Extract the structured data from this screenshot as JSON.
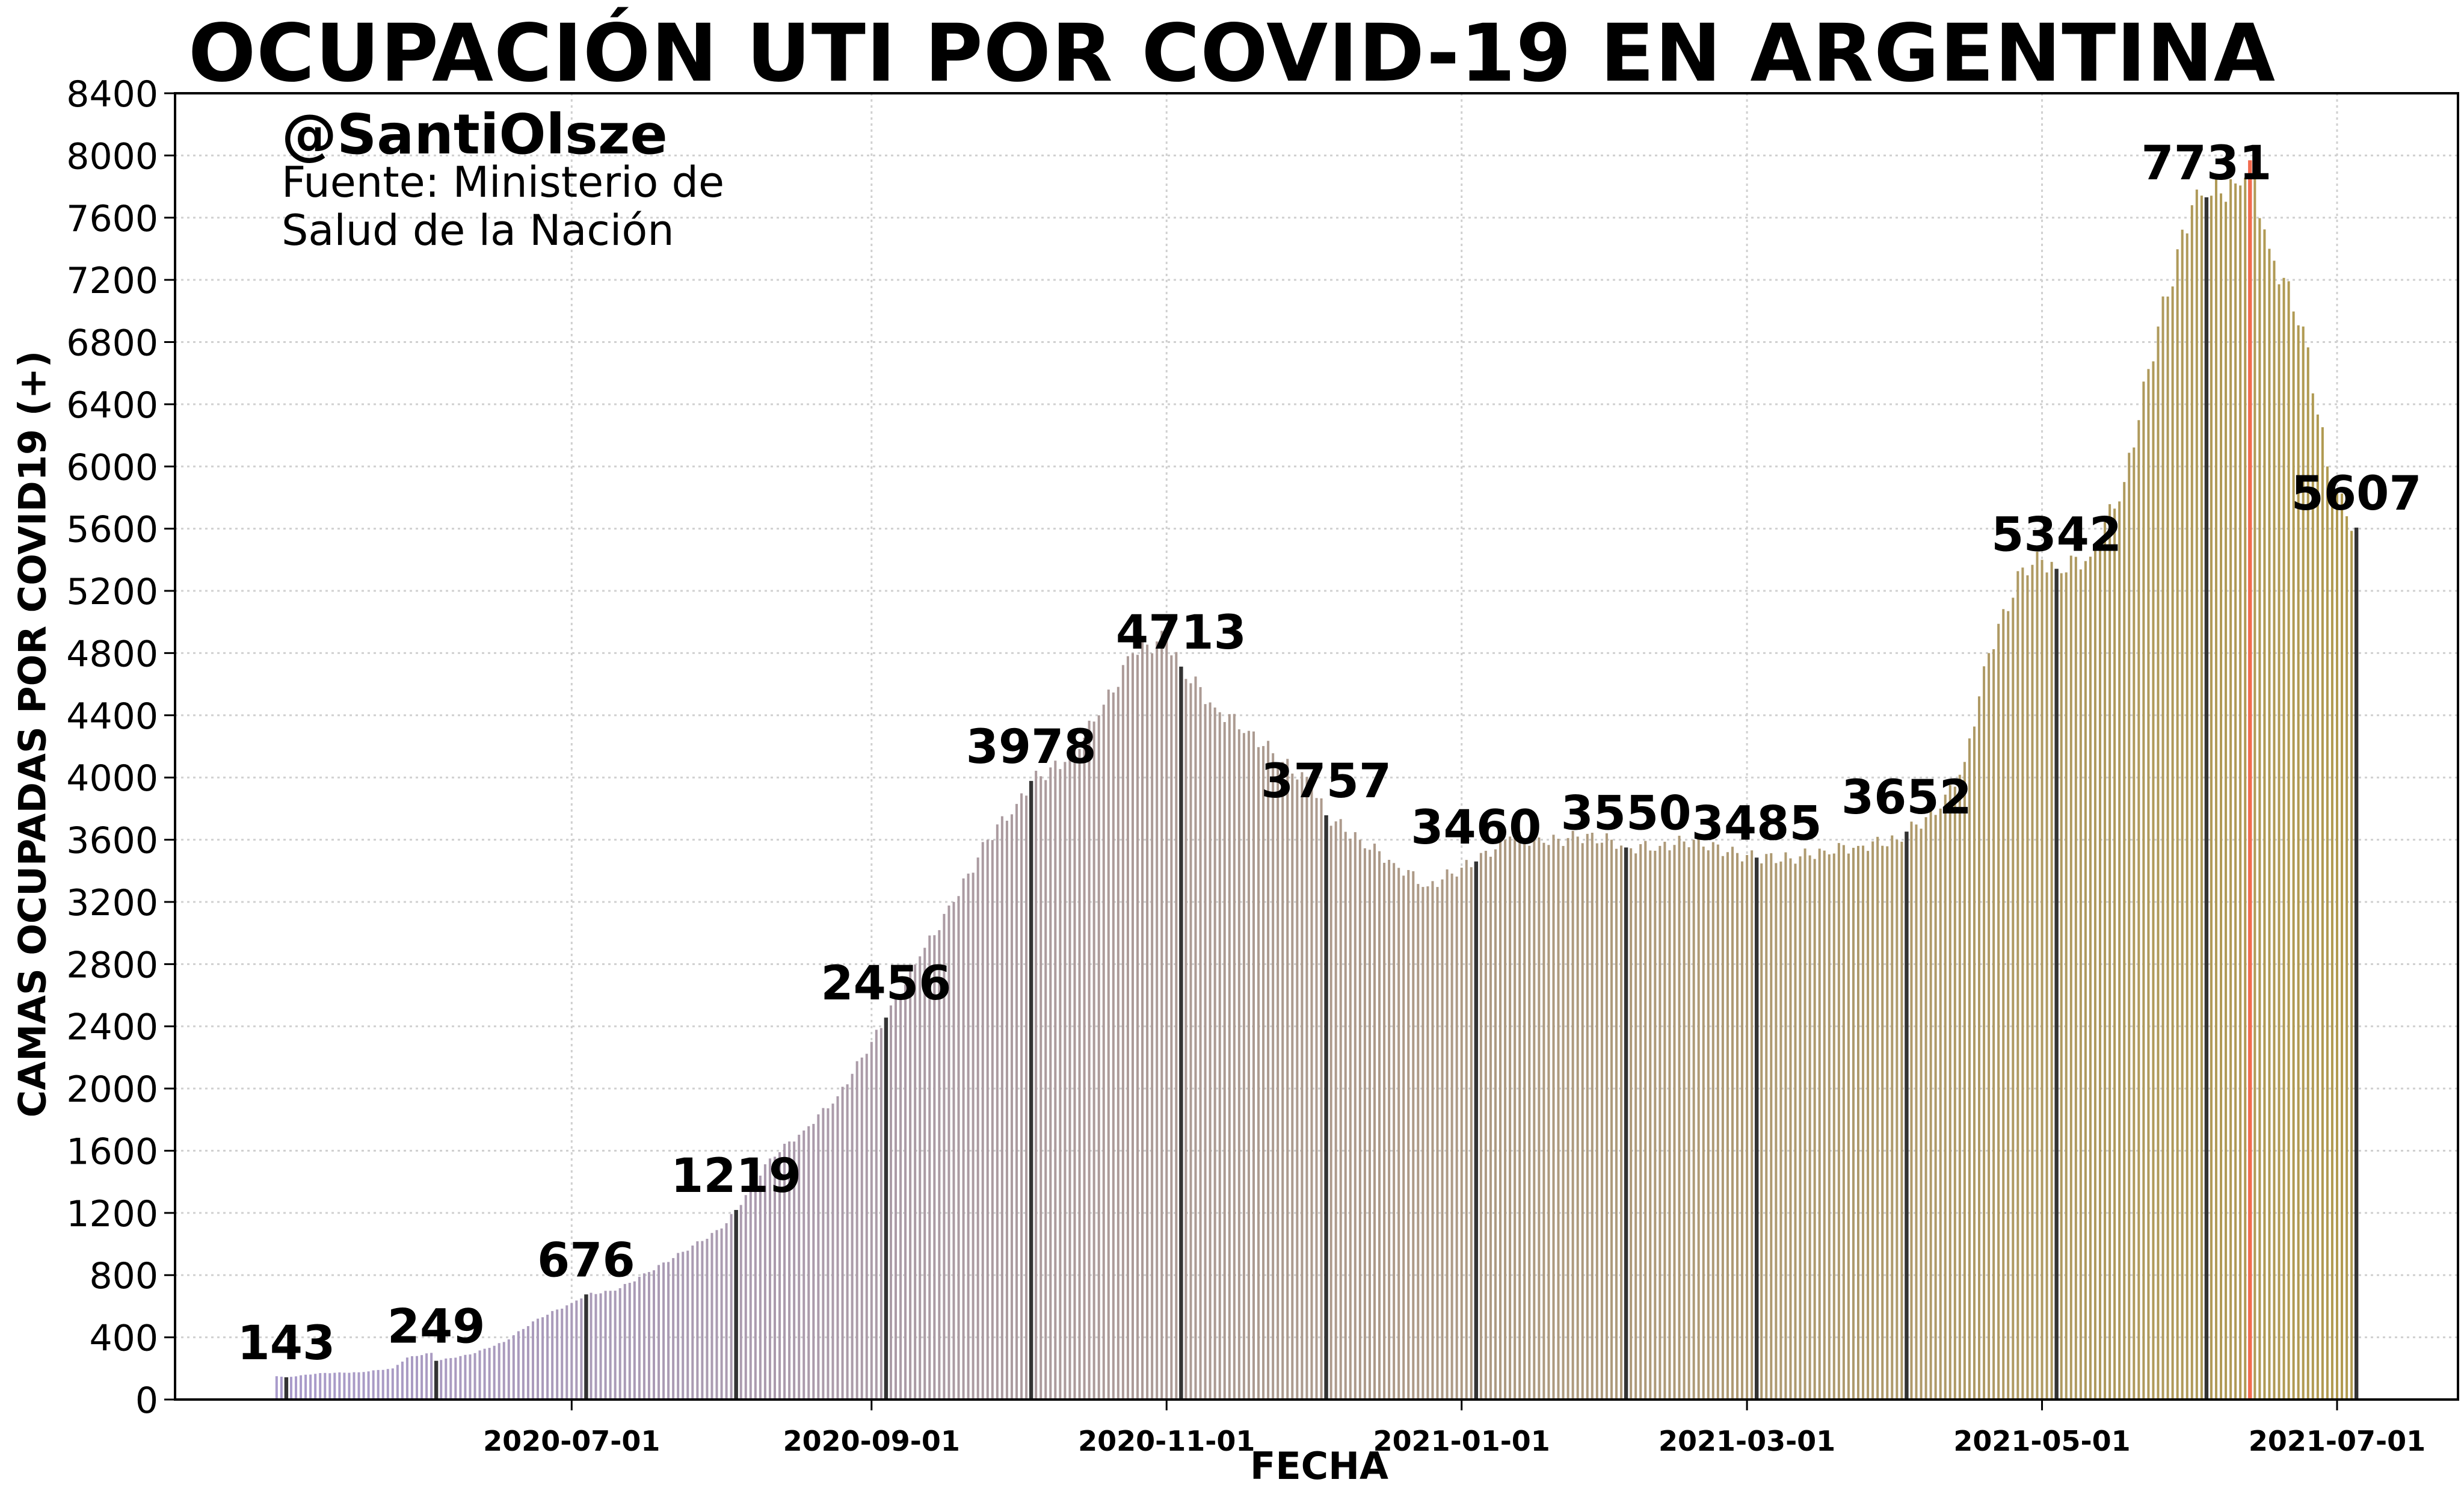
{
  "chart_data": {
    "type": "bar",
    "title": "OCUPACIÓN UTI POR COVID-19 EN ARGENTINA",
    "credit_handle": "@SantiOlsze",
    "credit_source_line1": "Fuente: Ministerio de",
    "credit_source_line2": "Salud de la Nación",
    "xlabel": "FECHA",
    "ylabel": "CAMAS OCUPADAS POR COVID19 (+)",
    "ylim": [
      0,
      8400
    ],
    "yticks": [
      0,
      400,
      800,
      1200,
      1600,
      2000,
      2400,
      2800,
      3200,
      3600,
      4000,
      4400,
      4800,
      5200,
      5600,
      6000,
      6400,
      6800,
      7200,
      7600,
      8000,
      8400
    ],
    "xlim": [
      "2020-04-10",
      "2021-07-26"
    ],
    "xticks": [
      "2020-07-01",
      "2020-09-01",
      "2020-11-01",
      "2021-01-01",
      "2021-03-01",
      "2021-05-01",
      "2021-07-01"
    ],
    "grid": true,
    "color_start": "#a99bcb",
    "color_end": "#b09a4f",
    "highlight_color": "#333333",
    "peak_color": "#f26b4f",
    "series_keypoints": [
      {
        "date": "2020-05-01",
        "value": 150
      },
      {
        "date": "2020-05-03",
        "value": 143
      },
      {
        "date": "2020-05-10",
        "value": 170
      },
      {
        "date": "2020-05-18",
        "value": 175
      },
      {
        "date": "2020-05-25",
        "value": 200
      },
      {
        "date": "2020-05-28",
        "value": 270
      },
      {
        "date": "2020-06-02",
        "value": 300
      },
      {
        "date": "2020-06-03",
        "value": 249
      },
      {
        "date": "2020-06-10",
        "value": 290
      },
      {
        "date": "2020-06-17",
        "value": 370
      },
      {
        "date": "2020-06-24",
        "value": 520
      },
      {
        "date": "2020-07-01",
        "value": 620
      },
      {
        "date": "2020-07-04",
        "value": 676
      },
      {
        "date": "2020-07-10",
        "value": 700
      },
      {
        "date": "2020-07-17",
        "value": 820
      },
      {
        "date": "2020-07-24",
        "value": 950
      },
      {
        "date": "2020-08-01",
        "value": 1100
      },
      {
        "date": "2020-08-04",
        "value": 1219
      },
      {
        "date": "2020-08-11",
        "value": 1550
      },
      {
        "date": "2020-08-18",
        "value": 1730
      },
      {
        "date": "2020-08-25",
        "value": 1950
      },
      {
        "date": "2020-09-01",
        "value": 2300
      },
      {
        "date": "2020-09-04",
        "value": 2456
      },
      {
        "date": "2020-09-11",
        "value": 2850
      },
      {
        "date": "2020-09-18",
        "value": 3200
      },
      {
        "date": "2020-09-25",
        "value": 3600
      },
      {
        "date": "2020-10-01",
        "value": 3830
      },
      {
        "date": "2020-10-04",
        "value": 3978
      },
      {
        "date": "2020-10-11",
        "value": 4100
      },
      {
        "date": "2020-10-18",
        "value": 4400
      },
      {
        "date": "2020-10-25",
        "value": 4800
      },
      {
        "date": "2020-11-01",
        "value": 4900
      },
      {
        "date": "2020-11-04",
        "value": 4713
      },
      {
        "date": "2020-11-11",
        "value": 4450
      },
      {
        "date": "2020-11-18",
        "value": 4300
      },
      {
        "date": "2020-11-25",
        "value": 4100
      },
      {
        "date": "2020-12-01",
        "value": 3950
      },
      {
        "date": "2020-12-04",
        "value": 3757
      },
      {
        "date": "2020-12-11",
        "value": 3600
      },
      {
        "date": "2020-12-18",
        "value": 3450
      },
      {
        "date": "2020-12-25",
        "value": 3300
      },
      {
        "date": "2021-01-01",
        "value": 3420
      },
      {
        "date": "2021-01-04",
        "value": 3460
      },
      {
        "date": "2021-01-11",
        "value": 3620
      },
      {
        "date": "2021-01-18",
        "value": 3580
      },
      {
        "date": "2021-01-25",
        "value": 3620
      },
      {
        "date": "2021-02-01",
        "value": 3600
      },
      {
        "date": "2021-02-04",
        "value": 3550
      },
      {
        "date": "2021-02-11",
        "value": 3560
      },
      {
        "date": "2021-02-18",
        "value": 3600
      },
      {
        "date": "2021-02-25",
        "value": 3520
      },
      {
        "date": "2021-03-03",
        "value": 3485
      },
      {
        "date": "2021-03-10",
        "value": 3480
      },
      {
        "date": "2021-03-17",
        "value": 3530
      },
      {
        "date": "2021-03-24",
        "value": 3560
      },
      {
        "date": "2021-04-01",
        "value": 3600
      },
      {
        "date": "2021-04-03",
        "value": 3652
      },
      {
        "date": "2021-04-10",
        "value": 3800
      },
      {
        "date": "2021-04-15",
        "value": 4100
      },
      {
        "date": "2021-04-20",
        "value": 4800
      },
      {
        "date": "2021-04-27",
        "value": 5350
      },
      {
        "date": "2021-05-01",
        "value": 5400
      },
      {
        "date": "2021-05-04",
        "value": 5342
      },
      {
        "date": "2021-05-11",
        "value": 5420
      },
      {
        "date": "2021-05-18",
        "value": 5900
      },
      {
        "date": "2021-05-25",
        "value": 6900
      },
      {
        "date": "2021-06-01",
        "value": 7680
      },
      {
        "date": "2021-06-04",
        "value": 7731
      },
      {
        "date": "2021-06-10",
        "value": 7820
      },
      {
        "date": "2021-06-13",
        "value": 7969
      },
      {
        "date": "2021-06-17",
        "value": 7400
      },
      {
        "date": "2021-06-24",
        "value": 6900
      },
      {
        "date": "2021-06-29",
        "value": 6000
      },
      {
        "date": "2021-07-03",
        "value": 5680
      },
      {
        "date": "2021-07-05",
        "value": 5607
      }
    ],
    "annotations": [
      {
        "date": "2020-05-03",
        "value": 143,
        "label": "143"
      },
      {
        "date": "2020-06-03",
        "value": 249,
        "label": "249"
      },
      {
        "date": "2020-07-04",
        "value": 676,
        "label": "676"
      },
      {
        "date": "2020-08-04",
        "value": 1219,
        "label": "1219"
      },
      {
        "date": "2020-09-04",
        "value": 2456,
        "label": "2456"
      },
      {
        "date": "2020-10-04",
        "value": 3978,
        "label": "3978"
      },
      {
        "date": "2020-11-04",
        "value": 4713,
        "label": "4713"
      },
      {
        "date": "2020-12-04",
        "value": 3757,
        "label": "3757"
      },
      {
        "date": "2021-01-04",
        "value": 3460,
        "label": "3460"
      },
      {
        "date": "2021-02-04",
        "value": 3550,
        "label": "3550"
      },
      {
        "date": "2021-03-03",
        "value": 3485,
        "label": "3485"
      },
      {
        "date": "2021-04-03",
        "value": 3652,
        "label": "3652"
      },
      {
        "date": "2021-05-04",
        "value": 5342,
        "label": "5342"
      },
      {
        "date": "2021-06-04",
        "value": 7731,
        "label": "7731"
      },
      {
        "date": "2021-07-05",
        "value": 5607,
        "label": "5607"
      }
    ],
    "peak": {
      "date": "2021-06-13",
      "value": 7969
    }
  }
}
